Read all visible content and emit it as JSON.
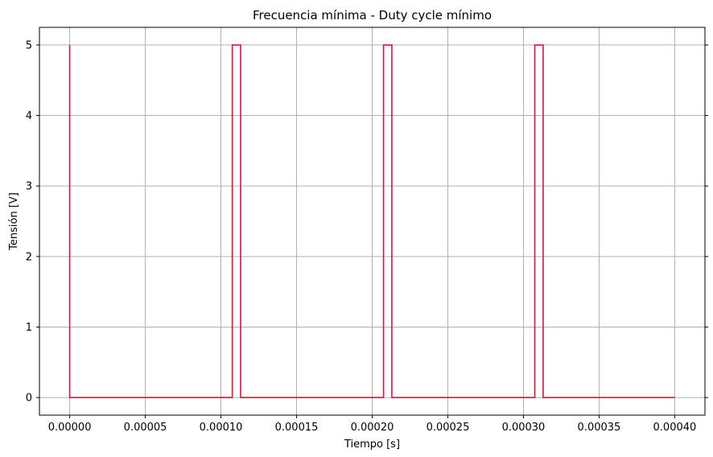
{
  "chart_data": {
    "type": "line",
    "title": "Frecuencia mínima - Duty cycle mínimo",
    "xlabel": "Tiempo [s]",
    "ylabel": "Tensión [V]",
    "xlim": [
      -2e-05,
      0.00042
    ],
    "ylim": [
      -0.25,
      5.25
    ],
    "x_ticks": [
      0,
      5e-05,
      0.0001,
      0.00015,
      0.0002,
      0.00025,
      0.0003,
      0.00035,
      0.0004
    ],
    "x_tick_labels": [
      "0.00000",
      "0.00005",
      "0.00010",
      "0.00015",
      "0.00020",
      "0.00025",
      "0.00030",
      "0.00035",
      "0.00040"
    ],
    "y_ticks": [
      0,
      1,
      2,
      3,
      4,
      5
    ],
    "y_tick_labels": [
      "0",
      "1",
      "2",
      "3",
      "4",
      "5"
    ],
    "grid": true,
    "series": [
      {
        "color": "#dc143c",
        "x": [
          0,
          0,
          0.0001075,
          0.0001075,
          0.000113,
          0.000113,
          0.0002075,
          0.0002075,
          0.000213,
          0.000213,
          0.0003075,
          0.0003075,
          0.000313,
          0.000313,
          0.0004
        ],
        "y": [
          5,
          0,
          0,
          5,
          5,
          0,
          0,
          5,
          5,
          0,
          0,
          5,
          5,
          0,
          0
        ]
      }
    ]
  }
}
